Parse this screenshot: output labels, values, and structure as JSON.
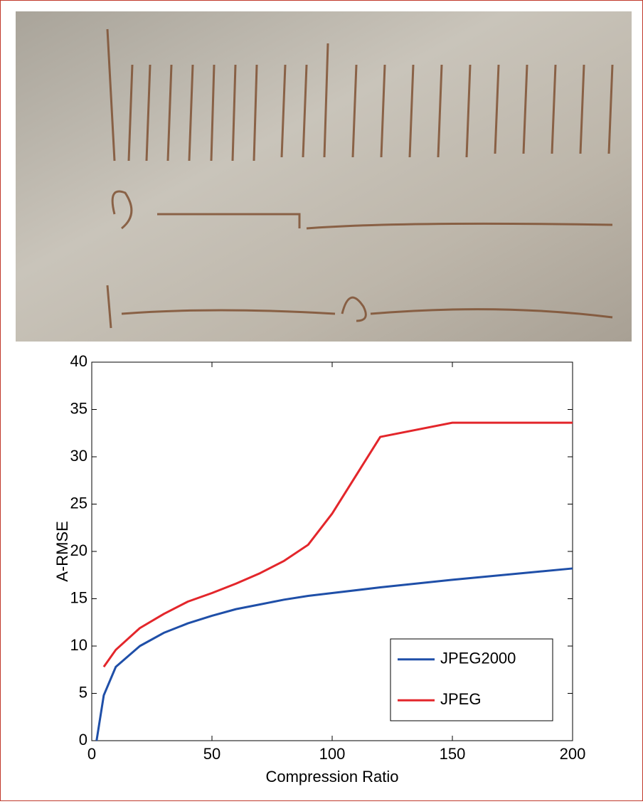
{
  "chart_data": {
    "type": "line",
    "xlabel": "Compression Ratio",
    "ylabel": "A-RMSE",
    "x": [
      2,
      5,
      10,
      20,
      30,
      40,
      50,
      60,
      70,
      80,
      90,
      100,
      120,
      150,
      200
    ],
    "series": [
      {
        "name": "JPEG2000",
        "color": "#1f4fa8",
        "values": [
          0,
          4.8,
          7.8,
          10,
          11.4,
          12.4,
          13.2,
          13.9,
          14.4,
          14.9,
          15.3,
          15.6,
          16.2,
          17.0,
          18.2
        ]
      },
      {
        "name": "JPEG",
        "color": "#e3262b",
        "values": [
          null,
          7.8,
          9.6,
          11.9,
          13.4,
          14.7,
          15.6,
          16.6,
          17.7,
          19.0,
          20.7,
          24,
          32.1,
          33.6,
          33.6
        ]
      }
    ],
    "xlim": [
      0,
      200
    ],
    "xticks": [
      0,
      50,
      100,
      150,
      200
    ],
    "ylim": [
      0,
      40
    ],
    "yticks": [
      0,
      5,
      10,
      15,
      20,
      25,
      30,
      35,
      40
    ],
    "grid": false,
    "legend": "lower right"
  }
}
